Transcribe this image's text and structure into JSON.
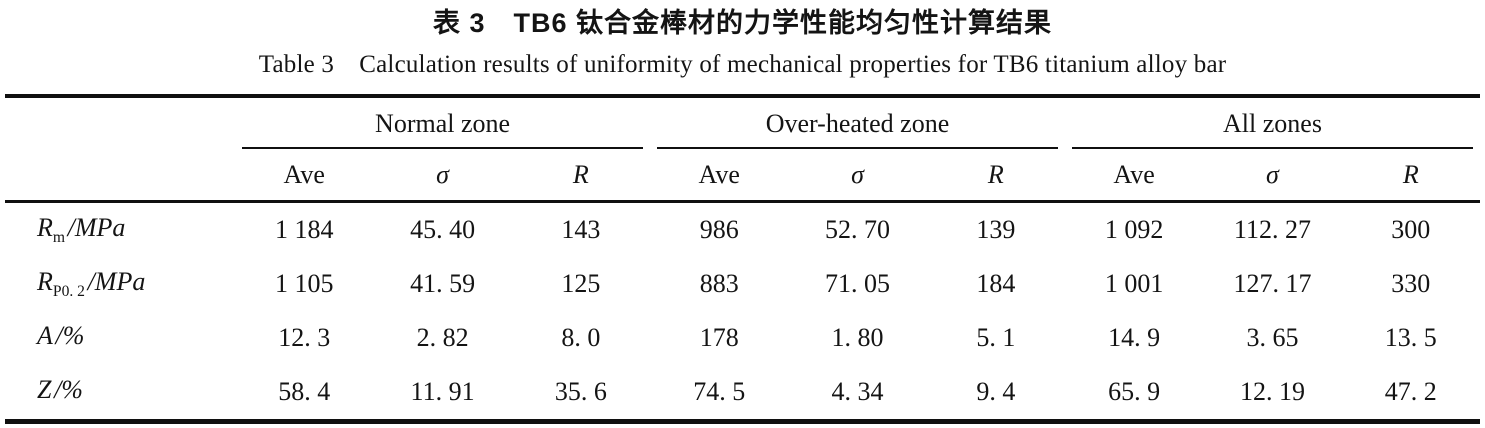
{
  "titles": {
    "zh": "表 3　TB6 钛合金棒材的力学性能均匀性计算结果",
    "en": "Table 3　Calculation results of uniformity of mechanical properties for TB6 titanium alloy bar"
  },
  "table": {
    "groups": [
      {
        "label": "Normal zone"
      },
      {
        "label": "Over-heated zone"
      },
      {
        "label": "All zones"
      }
    ],
    "subheaders": [
      "Ave",
      "σ",
      "R"
    ],
    "rows": [
      {
        "label_main": "R",
        "label_sub": "m",
        "label_unit": "/MPa",
        "values": [
          "1 184",
          "45. 40",
          "143",
          "986",
          "52. 70",
          "139",
          "1 092",
          "112. 27",
          "300"
        ]
      },
      {
        "label_main": "R",
        "label_sub": "P0. 2",
        "label_unit": "/MPa",
        "values": [
          "1 105",
          "41. 59",
          "125",
          "883",
          "71. 05",
          "184",
          "1 001",
          "127. 17",
          "330"
        ]
      },
      {
        "label_main": "A",
        "label_sub": "",
        "label_unit": "/%",
        "values": [
          "12. 3",
          "2. 82",
          "8. 0",
          "178",
          "1. 80",
          "5. 1",
          "14. 9",
          "3. 65",
          "13. 5"
        ]
      },
      {
        "label_main": "Z",
        "label_sub": "",
        "label_unit": "/%",
        "values": [
          "58. 4",
          "11. 91",
          "35. 6",
          "74. 5",
          "4. 34",
          "9. 4",
          "65. 9",
          "12. 19",
          "47. 2"
        ]
      }
    ]
  }
}
